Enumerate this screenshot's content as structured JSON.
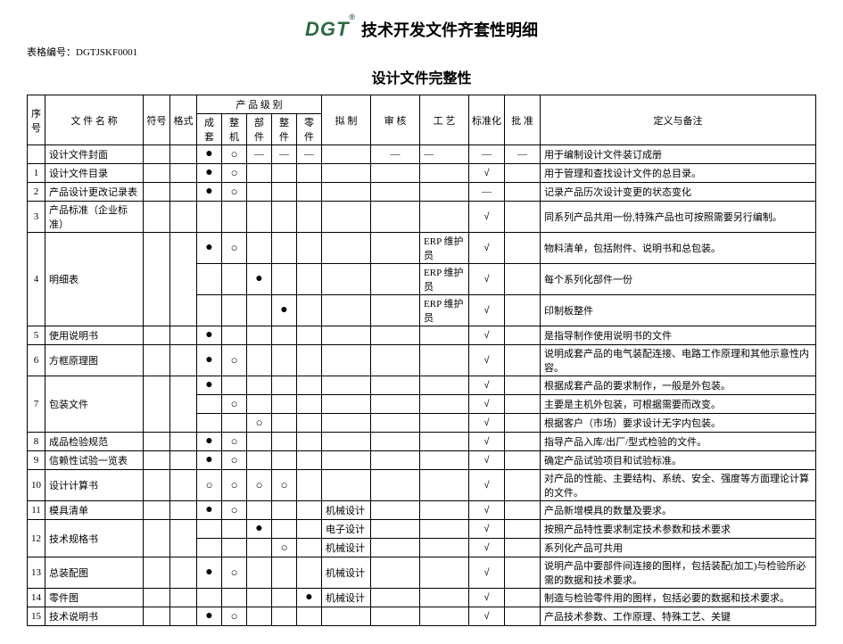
{
  "logo_text": "DGT",
  "logo_mark": "®",
  "main_title": "技术开发文件齐套性明细",
  "form_code_label": "表格编号：",
  "form_code": "DGTJSKF0001",
  "section_title": "设计文件完整性",
  "headers": {
    "seq": "序号",
    "name": "文 件 名 称",
    "symbol": "符号",
    "format": "格式",
    "level_group": "产 品 级 别",
    "levels": [
      "成套",
      "整机",
      "部件",
      "整件",
      "零件"
    ],
    "draft": "拟 制",
    "review": "审 核",
    "process": "工 艺",
    "standard": "标准化",
    "approve": "批 准",
    "note": "定义与备注"
  },
  "marks": {
    "filled": "●",
    "empty": "○",
    "dash": "—",
    "check": "√"
  },
  "rows": [
    {
      "seq": "",
      "name": "设计文件封面",
      "lvl": [
        "●",
        "○",
        "—",
        "—",
        "—"
      ],
      "draft": "",
      "review": "—",
      "process": "—",
      "standard": "—",
      "approve": "—",
      "note": "用于编制设计文件装订成册"
    },
    {
      "seq": "1",
      "name": "设计文件目录",
      "lvl": [
        "●",
        "○",
        "",
        "",
        ""
      ],
      "draft": "",
      "review": "",
      "process": "",
      "standard": "√",
      "approve": "",
      "note": "用于管理和查找设计文件的总目录。"
    },
    {
      "seq": "2",
      "name": "产品设计更改记录表",
      "lvl": [
        "●",
        "○",
        "",
        "",
        ""
      ],
      "draft": "",
      "review": "",
      "process": "",
      "standard": "—",
      "approve": "",
      "note": "记录产品历次设计变更的状态变化"
    },
    {
      "seq": "3",
      "name": "产品标准（企业标准）",
      "lvl": [
        "",
        "",
        "",
        "",
        ""
      ],
      "draft": "",
      "review": "",
      "process": "",
      "standard": "√",
      "approve": "",
      "note": "同系列产品共用一份,特殊产品也可按照需要另行编制。"
    },
    {
      "seq": "",
      "name": "",
      "lvl": [
        "●",
        "○",
        "",
        "",
        ""
      ],
      "draft": "",
      "review": "",
      "process": "ERP 维护员",
      "standard": "√",
      "approve": "",
      "note": "物料清单，包括附件、说明书和总包装。",
      "sub": true
    },
    {
      "seq": "4",
      "name": "明细表",
      "lvl": [
        "",
        "",
        "●",
        "",
        ""
      ],
      "draft": "",
      "review": "",
      "process": "ERP 维护员",
      "standard": "√",
      "approve": "",
      "note": "每个系列化部件一份",
      "sub": true,
      "rowspan_seq": 3,
      "rowspan_name": 3
    },
    {
      "seq": "",
      "name": "",
      "lvl": [
        "",
        "",
        "",
        "●",
        ""
      ],
      "draft": "",
      "review": "",
      "process": "ERP 维护员",
      "standard": "√",
      "approve": "",
      "note": "印制板整件",
      "sub": true
    },
    {
      "seq": "5",
      "name": "使用说明书",
      "lvl": [
        "●",
        "",
        "",
        "",
        ""
      ],
      "draft": "",
      "review": "",
      "process": "",
      "standard": "√",
      "approve": "",
      "note": "是指导制作使用说明书的文件"
    },
    {
      "seq": "6",
      "name": "方框原理图",
      "lvl": [
        "●",
        "○",
        "",
        "",
        ""
      ],
      "draft": "",
      "review": "",
      "process": "",
      "standard": "√",
      "approve": "",
      "note": "说明成套产品的电气装配连接、电路工作原理和其他示意性内容。"
    },
    {
      "seq": "",
      "name": "",
      "lvl": [
        "●",
        "",
        "",
        "",
        ""
      ],
      "draft": "",
      "review": "",
      "process": "",
      "standard": "√",
      "approve": "",
      "note": "根据成套产品的要求制作，一般是外包装。",
      "sub": true
    },
    {
      "seq": "7",
      "name": "包装文件",
      "lvl": [
        "",
        "○",
        "",
        "",
        ""
      ],
      "draft": "",
      "review": "",
      "process": "",
      "standard": "√",
      "approve": "",
      "note": "主要是主机外包装，可根据需要而改变。",
      "sub": true,
      "rowspan_seq": 3,
      "rowspan_name": 3
    },
    {
      "seq": "",
      "name": "",
      "lvl": [
        "",
        "",
        "○",
        "",
        ""
      ],
      "draft": "",
      "review": "",
      "process": "",
      "standard": "√",
      "approve": "",
      "note": "根据客户（市场）要求设计无字内包装。",
      "sub": true
    },
    {
      "seq": "8",
      "name": "成品检验规范",
      "lvl": [
        "●",
        "○",
        "",
        "",
        ""
      ],
      "draft": "",
      "review": "",
      "process": "",
      "standard": "√",
      "approve": "",
      "note": "指导产品入库/出厂/型式检验的文件。"
    },
    {
      "seq": "9",
      "name": "信赖性试验一览表",
      "lvl": [
        "●",
        "○",
        "",
        "",
        ""
      ],
      "draft": "",
      "review": "",
      "process": "",
      "standard": "√",
      "approve": "",
      "note": "确定产品试验项目和试验标准。"
    },
    {
      "seq": "10",
      "name": "设计计算书",
      "lvl": [
        "○",
        "○",
        "○",
        "○",
        ""
      ],
      "draft": "",
      "review": "",
      "process": "",
      "standard": "√",
      "approve": "",
      "note": "对产品的性能、主要结构、系统、安全、强度等方面理论计算的文件。"
    },
    {
      "seq": "11",
      "name": "模具清单",
      "lvl": [
        "●",
        "○",
        "",
        "",
        ""
      ],
      "draft": "机械设计",
      "review": "",
      "process": "",
      "standard": "√",
      "approve": "",
      "note": "产品新增模具的数量及要求。"
    },
    {
      "seq": "12",
      "name": "技术规格书",
      "lvl": [
        "",
        "",
        "●",
        "",
        ""
      ],
      "draft": "电子设计",
      "review": "",
      "process": "",
      "standard": "√",
      "approve": "",
      "note": "按照产品特性要求制定技术参数和技术要求",
      "sub": true,
      "rowspan_seq": 2,
      "rowspan_name": 2
    },
    {
      "seq": "",
      "name": "",
      "lvl": [
        "",
        "",
        "",
        "○",
        ""
      ],
      "draft": "机械设计",
      "review": "",
      "process": "",
      "standard": "√",
      "approve": "",
      "note": "系列化产品可共用",
      "sub": true
    },
    {
      "seq": "13",
      "name": "总装配图",
      "lvl": [
        "●",
        "○",
        "",
        "",
        ""
      ],
      "draft": "机械设计",
      "review": "",
      "process": "",
      "standard": "√",
      "approve": "",
      "note": "说明产品中要部件间连接的图样，包括装配(加工)与检验所必需的数据和技术要求。"
    },
    {
      "seq": "14",
      "name": "零件图",
      "lvl": [
        "",
        "",
        "",
        "",
        "●"
      ],
      "draft": "机械设计",
      "review": "",
      "process": "",
      "standard": "√",
      "approve": "",
      "note": "制造与检验零件用的图样，包括必要的数据和技术要求。"
    },
    {
      "seq": "15",
      "name": "技术说明书",
      "lvl": [
        "●",
        "○",
        "",
        "",
        ""
      ],
      "draft": "",
      "review": "",
      "process": "",
      "standard": "√",
      "approve": "",
      "note": "产品技术参数、工作原理、特殊工艺、关键"
    }
  ]
}
